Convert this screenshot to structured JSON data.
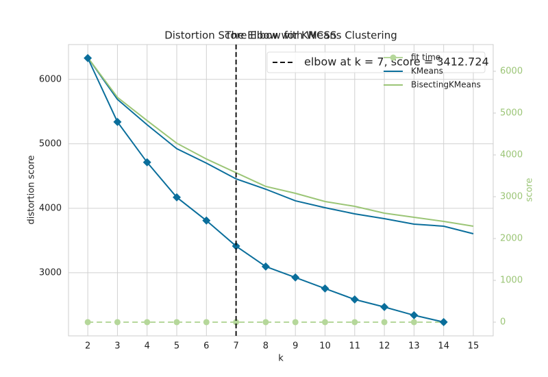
{
  "chart_data": {
    "type": "line",
    "titles": [
      "Distortion Score Elbow for KMeans Clustering",
      "The Elbow with WCSS"
    ],
    "xlabel": "k",
    "ylabel": "distortion score",
    "y2label": "score",
    "x": [
      2,
      3,
      4,
      5,
      6,
      7,
      8,
      9,
      10,
      11,
      12,
      13,
      14,
      15
    ],
    "xlim": [
      1.35,
      15.67
    ],
    "xticks": [
      2,
      3,
      4,
      5,
      6,
      7,
      8,
      9,
      10,
      11,
      12,
      13,
      14,
      15
    ],
    "ylim": [
      2020,
      6540
    ],
    "yticks": [
      3000,
      4000,
      5000,
      6000
    ],
    "y2lim": [
      -328,
      6639
    ],
    "y2ticks": [
      0,
      1000,
      2000,
      3000,
      4000,
      5000,
      6000
    ],
    "y2color": "#9bc576",
    "grid": true,
    "distortion": {
      "color": "#0a6e9b",
      "values": [
        6330,
        5340,
        4713,
        4170,
        3809,
        3412.724,
        3096,
        2926,
        2755,
        2585,
        2468,
        2340,
        2234,
        null
      ]
    },
    "elbow": {
      "x": 7,
      "label": "elbow at k = 7, score = 3412.724",
      "color": "#111111"
    },
    "series": [
      {
        "name": "fit time",
        "color": "#b5d79a",
        "axis": "y2",
        "values": [
          0,
          0,
          0,
          0,
          0,
          0,
          0,
          0,
          0,
          0,
          0,
          0,
          0,
          null
        ]
      },
      {
        "name": "KMeans",
        "color": "#0a6e9b",
        "axis": "y2",
        "values": [
          6328,
          5328,
          4721,
          4148,
          3803,
          3426,
          3180,
          2902,
          2738,
          2590,
          2475,
          2344,
          2295,
          2115
        ]
      },
      {
        "name": "BisectingKMeans",
        "color": "#9bc576",
        "axis": "y2",
        "values": [
          6328,
          5377,
          4820,
          4279,
          3902,
          3574,
          3246,
          3082,
          2885,
          2770,
          2607,
          2508,
          2410,
          2295
        ]
      }
    ]
  }
}
